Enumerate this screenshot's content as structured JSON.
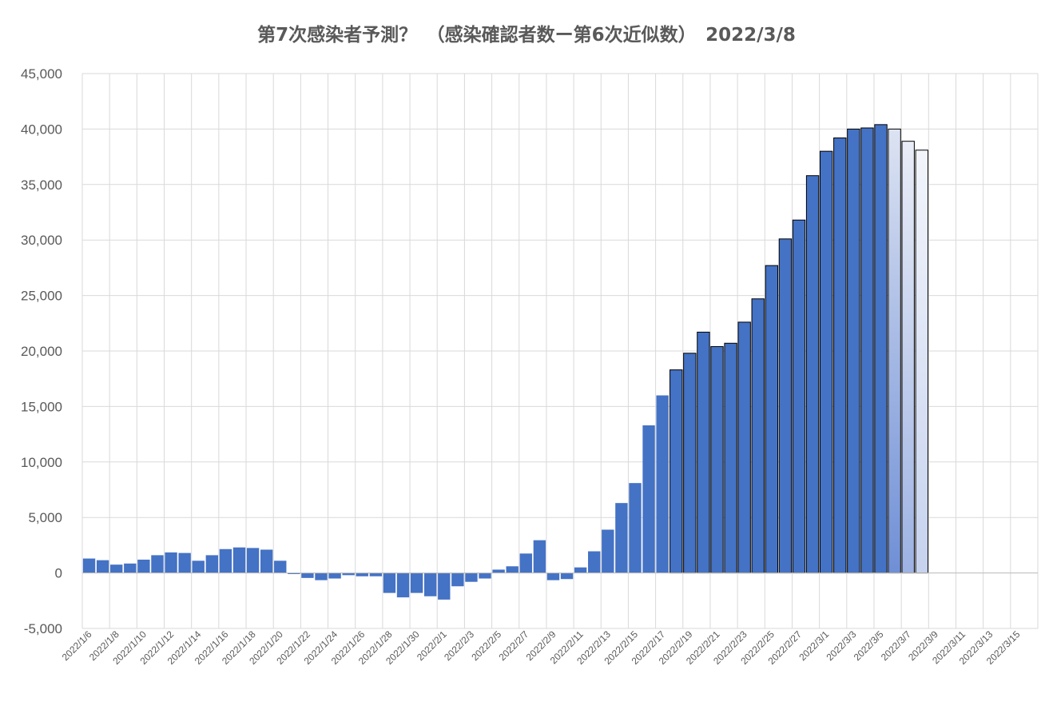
{
  "chart_data": {
    "type": "bar",
    "title": "第7次感染者予測？　（感染確認者数ー第6次近似数）　2022/3/8",
    "xlabel": "",
    "ylabel": "",
    "ylim": [
      -5000,
      45000
    ],
    "yticks": [
      -5000,
      0,
      5000,
      10000,
      15000,
      20000,
      25000,
      30000,
      35000,
      40000,
      45000
    ],
    "ytick_labels": [
      "-5,000",
      "0",
      "5,000",
      "10,000",
      "15,000",
      "20,000",
      "25,000",
      "30,000",
      "35,000",
      "40,000",
      "45,000"
    ],
    "grid": true,
    "legend": "none",
    "categories": [
      "2022/1/6",
      "2022/1/7",
      "2022/1/8",
      "2022/1/9",
      "2022/1/10",
      "2022/1/11",
      "2022/1/12",
      "2022/1/13",
      "2022/1/14",
      "2022/1/15",
      "2022/1/16",
      "2022/1/17",
      "2022/1/18",
      "2022/1/19",
      "2022/1/20",
      "2022/1/21",
      "2022/1/22",
      "2022/1/23",
      "2022/1/24",
      "2022/1/25",
      "2022/1/26",
      "2022/1/27",
      "2022/1/28",
      "2022/1/29",
      "2022/1/30",
      "2022/1/31",
      "2022/2/1",
      "2022/2/2",
      "2022/2/3",
      "2022/2/4",
      "2022/2/5",
      "2022/2/6",
      "2022/2/7",
      "2022/2/8",
      "2022/2/9",
      "2022/2/10",
      "2022/2/11",
      "2022/2/12",
      "2022/2/13",
      "2022/2/14",
      "2022/2/15",
      "2022/2/16",
      "2022/2/17",
      "2022/2/18",
      "2022/2/19",
      "2022/2/20",
      "2022/2/21",
      "2022/2/22",
      "2022/2/23",
      "2022/2/24",
      "2022/2/25",
      "2022/2/26",
      "2022/2/27",
      "2022/2/28",
      "2022/3/1",
      "2022/3/2",
      "2022/3/3",
      "2022/3/4",
      "2022/3/5",
      "2022/3/6",
      "2022/3/7",
      "2022/3/8",
      "2022/3/9",
      "2022/3/10",
      "2022/3/11",
      "2022/3/12",
      "2022/3/13",
      "2022/3/14",
      "2022/3/15",
      "2022/3/16"
    ],
    "xtick_labels": [
      "2022/1/6",
      "2022/1/8",
      "2022/1/10",
      "2022/1/12",
      "2022/1/14",
      "2022/1/16",
      "2022/1/18",
      "2022/1/20",
      "2022/1/22",
      "2022/1/24",
      "2022/1/26",
      "2022/1/28",
      "2022/1/30",
      "2022/2/1",
      "2022/2/3",
      "2022/2/5",
      "2022/2/7",
      "2022/2/9",
      "2022/2/11",
      "2022/2/13",
      "2022/2/15",
      "2022/2/17",
      "2022/2/19",
      "2022/2/21",
      "2022/2/23",
      "2022/2/25",
      "2022/2/27",
      "2022/3/1",
      "2022/3/3",
      "2022/3/5",
      "2022/3/7",
      "2022/3/9",
      "2022/3/11",
      "2022/3/13",
      "2022/3/15"
    ],
    "values": [
      1300,
      1150,
      750,
      850,
      1200,
      1600,
      1850,
      1800,
      1100,
      1600,
      2150,
      2300,
      2250,
      2100,
      1100,
      -100,
      -450,
      -650,
      -500,
      -200,
      -300,
      -300,
      -1800,
      -2200,
      -1800,
      -2100,
      -2400,
      -1200,
      -800,
      -500,
      300,
      600,
      1750,
      2950,
      -650,
      -550,
      500,
      1950,
      3900,
      6300,
      8100,
      13300,
      16000,
      18300,
      19800,
      21700,
      20400,
      20700,
      22600,
      24700,
      27700,
      30100,
      31800,
      35800,
      38000,
      39200,
      40000,
      40100,
      40400,
      40000,
      38900,
      38100,
      null,
      null,
      null,
      null,
      null,
      null,
      null,
      null
    ],
    "bar_colors": {
      "base": "#4472C4",
      "outlined": "#4472C4",
      "outline": "#000000",
      "fading": [
        "#DCE3F2",
        "#E9EDF7",
        "#F2F5FB"
      ]
    }
  }
}
